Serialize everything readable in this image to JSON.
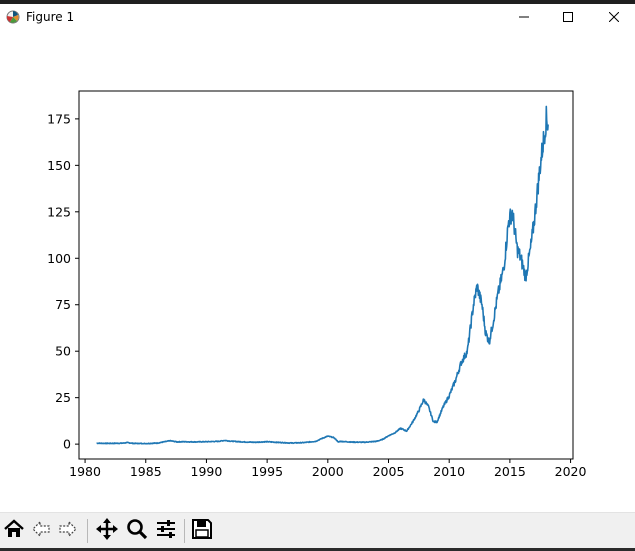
{
  "window": {
    "title": "Figure 1",
    "controls": [
      "minimize-icon",
      "maximize-icon",
      "close-icon"
    ]
  },
  "toolbar": {
    "buttons": [
      "home-icon",
      "back-icon",
      "forward-icon",
      "pan-icon",
      "zoom-icon",
      "configure-subplots-icon",
      "save-icon"
    ]
  },
  "chart_data": {
    "type": "line",
    "title": "",
    "xlabel": "",
    "ylabel": "",
    "xlim": [
      1979.5,
      2020.2
    ],
    "ylim": [
      -8,
      190
    ],
    "xticks": [
      1980,
      1985,
      1990,
      1995,
      2000,
      2005,
      2010,
      2015,
      2020
    ],
    "yticks": [
      0,
      25,
      50,
      75,
      100,
      125,
      150,
      175
    ],
    "xtick_labels": [
      "1980",
      "1985",
      "1990",
      "1995",
      "2000",
      "2005",
      "2010",
      "2015",
      "2020"
    ],
    "ytick_labels": [
      "0",
      "25",
      "50",
      "75",
      "100",
      "125",
      "150",
      "175"
    ],
    "grid": false,
    "color": "#1f77b4",
    "series": [
      {
        "x": [
          1980.95,
          1982.0,
          1983.0,
          1983.5,
          1984.0,
          1985.0,
          1986.0,
          1987.0,
          1987.6,
          1988.0,
          1989.0,
          1990.0,
          1991.0,
          1991.5,
          1992.0,
          1993.0,
          1994.0,
          1995.0,
          1996.0,
          1997.0,
          1998.0,
          1999.0,
          1999.5,
          2000.0,
          2000.5,
          2000.9,
          2001.0,
          2002.0,
          2003.0,
          2004.0,
          2004.5,
          2005.0,
          2005.5,
          2006.0,
          2006.5,
          2007.0,
          2007.5,
          2007.9,
          2008.3,
          2008.7,
          2009.0,
          2009.5,
          2010.0,
          2010.5,
          2011.0,
          2011.5,
          2012.0,
          2012.3,
          2012.7,
          2013.0,
          2013.3,
          2013.6,
          2014.0,
          2014.5,
          2014.9,
          2015.2,
          2015.6,
          2015.9,
          2016.3,
          2016.7,
          2017.0,
          2017.5,
          2017.8,
          2018.0,
          2018.15
        ],
        "y": [
          0.5,
          0.4,
          0.5,
          0.8,
          0.4,
          0.3,
          0.6,
          1.8,
          1.2,
          1.3,
          1.2,
          1.3,
          1.5,
          2.0,
          1.6,
          1.2,
          1.0,
          1.3,
          0.9,
          0.6,
          0.8,
          1.5,
          3.0,
          4.3,
          3.5,
          1.0,
          1.5,
          1.1,
          1.0,
          1.5,
          2.5,
          4.5,
          6.0,
          8.5,
          7.0,
          12.0,
          18.0,
          24.0,
          20.0,
          12.0,
          12.0,
          20.0,
          26.0,
          34.0,
          44.0,
          50.0,
          75.0,
          85.0,
          75.0,
          60.0,
          55.0,
          65.0,
          80.0,
          95.0,
          120.0,
          125.0,
          105.0,
          100.0,
          90.0,
          105.0,
          120.0,
          150.0,
          165.0,
          175.0,
          172.0
        ]
      }
    ]
  }
}
